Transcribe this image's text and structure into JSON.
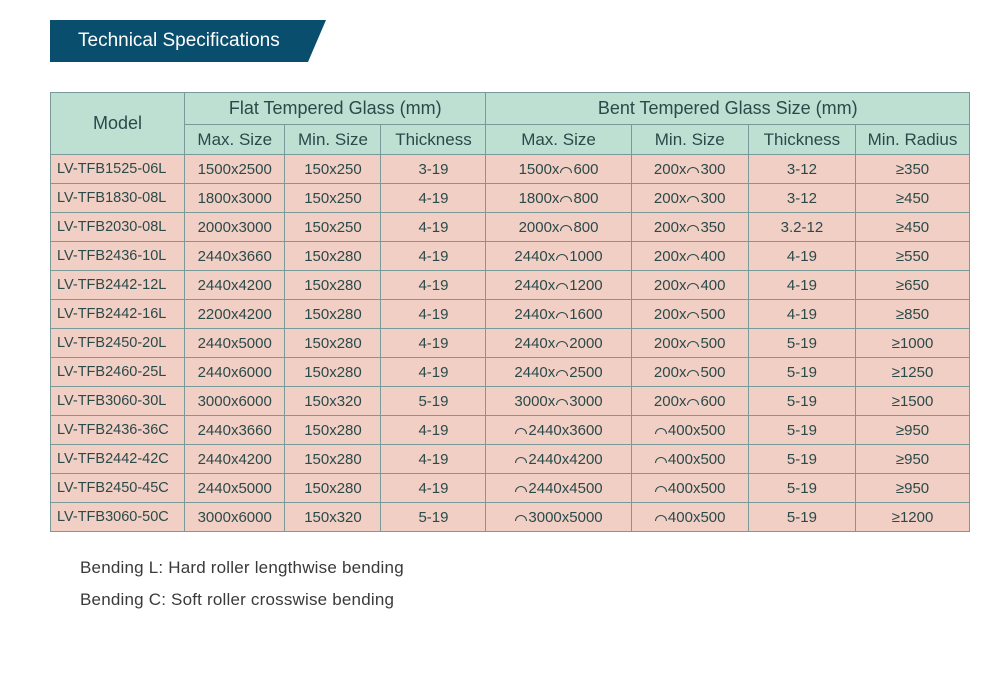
{
  "title": "Technical Specifications",
  "table": {
    "header_top": {
      "model": "Model",
      "flat": "Flat Tempered Glass (mm)",
      "bent": "Bent Tempered Glass Size (mm)"
    },
    "header_sub": {
      "f_max": "Max. Size",
      "f_min": "Min. Size",
      "f_th": "Thickness",
      "b_max": "Max. Size",
      "b_min": "Min. Size",
      "b_th": "Thickness",
      "b_rad": "Min. Radius"
    },
    "rows": [
      {
        "model": "LV-TFB1525-06L",
        "f_max": "1500x2500",
        "f_min": "150x250",
        "f_th": "3-19",
        "b_max_a": "1500x",
        "b_max_b": "600",
        "b_min_a": "200x",
        "b_min_b": "300",
        "arc_before": false,
        "b_th": "3-12",
        "b_rad": "350"
      },
      {
        "model": "LV-TFB1830-08L",
        "f_max": "1800x3000",
        "f_min": "150x250",
        "f_th": "4-19",
        "b_max_a": "1800x",
        "b_max_b": "800",
        "b_min_a": "200x",
        "b_min_b": "300",
        "arc_before": false,
        "b_th": "3-12",
        "b_rad": "450"
      },
      {
        "model": "LV-TFB2030-08L",
        "f_max": "2000x3000",
        "f_min": "150x250",
        "f_th": "4-19",
        "b_max_a": "2000x",
        "b_max_b": "800",
        "b_min_a": "200x",
        "b_min_b": "350",
        "arc_before": false,
        "b_th": "3.2-12",
        "b_rad": "450"
      },
      {
        "model": "LV-TFB2436-10L",
        "f_max": "2440x3660",
        "f_min": "150x280",
        "f_th": "4-19",
        "b_max_a": "2440x",
        "b_max_b": "1000",
        "b_min_a": "200x",
        "b_min_b": "400",
        "arc_before": false,
        "b_th": "4-19",
        "b_rad": "550"
      },
      {
        "model": "LV-TFB2442-12L",
        "f_max": "2440x4200",
        "f_min": "150x280",
        "f_th": "4-19",
        "b_max_a": "2440x",
        "b_max_b": "1200",
        "b_min_a": "200x",
        "b_min_b": "400",
        "arc_before": false,
        "b_th": "4-19",
        "b_rad": "650"
      },
      {
        "model": "LV-TFB2442-16L",
        "f_max": "2200x4200",
        "f_min": "150x280",
        "f_th": "4-19",
        "b_max_a": "2440x",
        "b_max_b": "1600",
        "b_min_a": "200x",
        "b_min_b": "500",
        "arc_before": false,
        "b_th": "4-19",
        "b_rad": "850"
      },
      {
        "model": "LV-TFB2450-20L",
        "f_max": "2440x5000",
        "f_min": "150x280",
        "f_th": "4-19",
        "b_max_a": "2440x",
        "b_max_b": "2000",
        "b_min_a": "200x",
        "b_min_b": "500",
        "arc_before": false,
        "b_th": "5-19",
        "b_rad": "1000"
      },
      {
        "model": "LV-TFB2460-25L",
        "f_max": "2440x6000",
        "f_min": "150x280",
        "f_th": "4-19",
        "b_max_a": "2440x",
        "b_max_b": "2500",
        "b_min_a": "200x",
        "b_min_b": "500",
        "arc_before": false,
        "b_th": "5-19",
        "b_rad": "1250"
      },
      {
        "model": "LV-TFB3060-30L",
        "f_max": "3000x6000",
        "f_min": "150x320",
        "f_th": "5-19",
        "b_max_a": "3000x",
        "b_max_b": "3000",
        "b_min_a": "200x",
        "b_min_b": "600",
        "arc_before": false,
        "b_th": "5-19",
        "b_rad": "1500"
      },
      {
        "model": "LV-TFB2436-36C",
        "f_max": "2440x3660",
        "f_min": "150x280",
        "f_th": "4-19",
        "b_max_a": "2440x3600",
        "b_max_b": "",
        "b_min_a": "400x500",
        "b_min_b": "",
        "arc_before": true,
        "b_th": "5-19",
        "b_rad": "950"
      },
      {
        "model": "LV-TFB2442-42C",
        "f_max": "2440x4200",
        "f_min": "150x280",
        "f_th": "4-19",
        "b_max_a": "2440x4200",
        "b_max_b": "",
        "b_min_a": "400x500",
        "b_min_b": "",
        "arc_before": true,
        "b_th": "5-19",
        "b_rad": "950"
      },
      {
        "model": "LV-TFB2450-45C",
        "f_max": "2440x5000",
        "f_min": "150x280",
        "f_th": "4-19",
        "b_max_a": "2440x4500",
        "b_max_b": "",
        "b_min_a": "400x500",
        "b_min_b": "",
        "arc_before": true,
        "b_th": "5-19",
        "b_rad": "950"
      },
      {
        "model": "LV-TFB3060-50C",
        "f_max": "3000x6000",
        "f_min": "150x320",
        "f_th": "5-19",
        "b_max_a": "3000x5000",
        "b_max_b": "",
        "b_min_a": "400x500",
        "b_min_b": "",
        "arc_before": true,
        "b_th": "5-19",
        "b_rad": "1200"
      }
    ]
  },
  "notes": {
    "line1": "Bending L: Hard roller lengthwise bending",
    "line2": "Bending C: Soft roller crosswise bending"
  },
  "colors": {
    "banner_bg": "#0a4e6e",
    "header_bg": "#bde0d3",
    "cell_bg": "#f2cfc4",
    "border": "#7a9a9a",
    "text": "#2a4a4a"
  }
}
